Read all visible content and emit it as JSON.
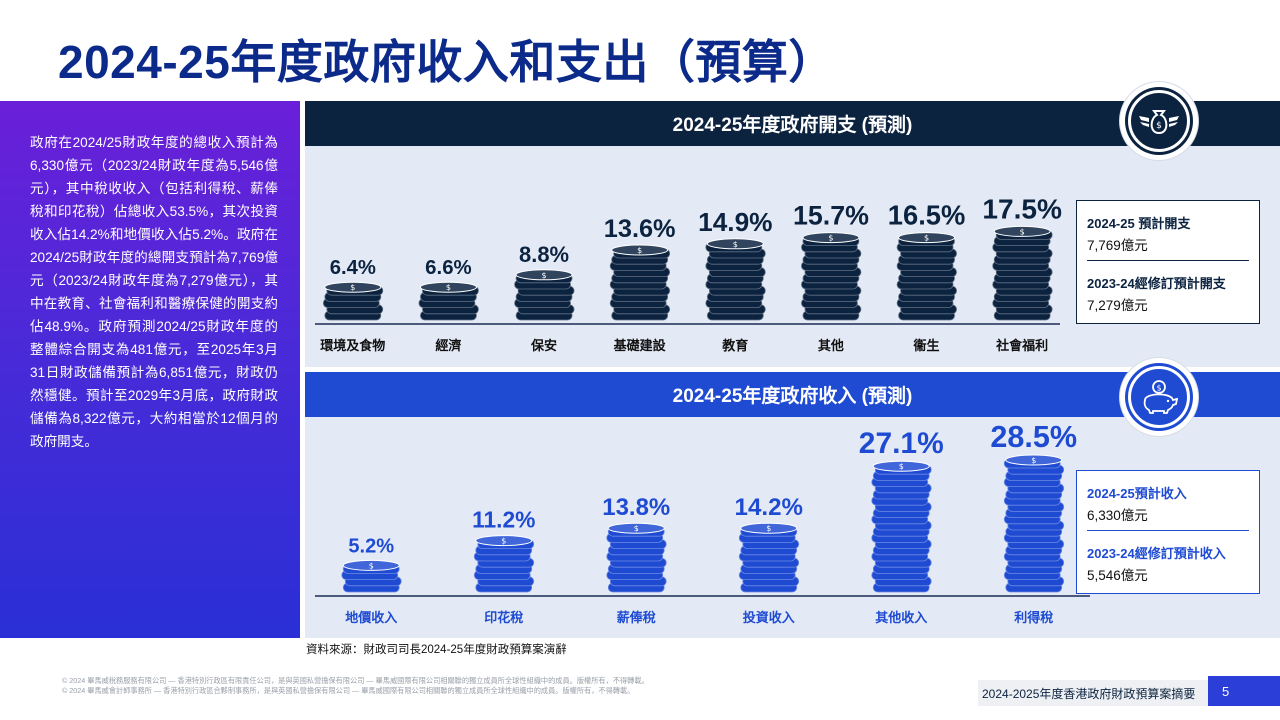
{
  "page": {
    "title": "2024-25年度政府收入和支出（預算）",
    "page_number": "5",
    "document_title": "2024-2025年度香港政府財政預算案摘要"
  },
  "intro_text": "政府在2024/25財政年度的總收入預計為6,330億元（2023/24財政年度為5,546億元），其中稅收收入（包括利得稅、薪俸稅和印花稅）佔總收入53.5%，其次投資收入佔14.2%和地價收入佔5.2%。政府在2024/25財政年度的總開支預計為7,769億元（2023/24財政年度為7,279億元），其中在教育、社會福利和醫療保健的開支約佔48.9%。政府預測2024/25財政年度的整體綜合開支為481億元，至2025年3月31日財政儲備預計為6,851億元，財政仍然穩健。預計至2029年3月底，政府財政儲備為8,322億元，大約相當於12個月的政府開支。",
  "expenditure": {
    "header": "2024-25年度政府開支 (預測)",
    "icon": "money-bag-wings-icon",
    "summary": [
      {
        "label": "2024-25 預計開支",
        "value": "7,769億元"
      },
      {
        "label": "2023-24經修訂預計開支",
        "value": "7,279億元"
      }
    ]
  },
  "revenue": {
    "header": "2024-25年度政府收入 (預測)",
    "icon": "piggy-bank-icon",
    "summary": [
      {
        "label": "2024-25預計收入",
        "value": "6,330億元"
      },
      {
        "label": "2023-24經修訂預計收入",
        "value": "5,546億元"
      }
    ]
  },
  "chart_data": [
    {
      "type": "bar",
      "title": "2024-25年度政府開支 (預測)",
      "categories": [
        "環境及食物",
        "經濟",
        "保安",
        "基礎建設",
        "教育",
        "其他",
        "衞生",
        "社會福利"
      ],
      "values": [
        6.4,
        6.6,
        8.8,
        13.6,
        14.9,
        15.7,
        16.5,
        17.5
      ],
      "value_labels": [
        "6.4%",
        "6.6%",
        "8.8%",
        "13.6%",
        "14.9%",
        "15.7%",
        "16.5%",
        "17.5%"
      ],
      "unit": "%",
      "color": "#0c2340"
    },
    {
      "type": "bar",
      "title": "2024-25年度政府收入 (預測)",
      "categories": [
        "地價收入",
        "印花稅",
        "薪俸稅",
        "投資收入",
        "其他收入",
        "利得稅"
      ],
      "values": [
        5.2,
        11.2,
        13.8,
        14.2,
        27.1,
        28.5
      ],
      "value_labels": [
        "5.2%",
        "11.2%",
        "13.8%",
        "14.2%",
        "27.1%",
        "28.5%"
      ],
      "unit": "%",
      "color": "#1e4bd2"
    }
  ],
  "source": "資料來源：財政司司長2024-25年度財政預算案演辭",
  "legal": [
    "© 2024 畢馬威稅務服務有限公司 — 香港特別行政區有限責任公司，是與英國私營擔保有限公司 — 畢馬威國際有限公司相關聯的獨立成員所全球性組織中的成員。版權所有，不得轉載。",
    "© 2024 畢馬威會計師事務所 — 香港特別行政區合夥制事務所，是與英國私營擔保有限公司 — 畢馬威國際有限公司相關聯的獨立成員所全球性組織中的成員。版權所有，不得轉載。"
  ]
}
